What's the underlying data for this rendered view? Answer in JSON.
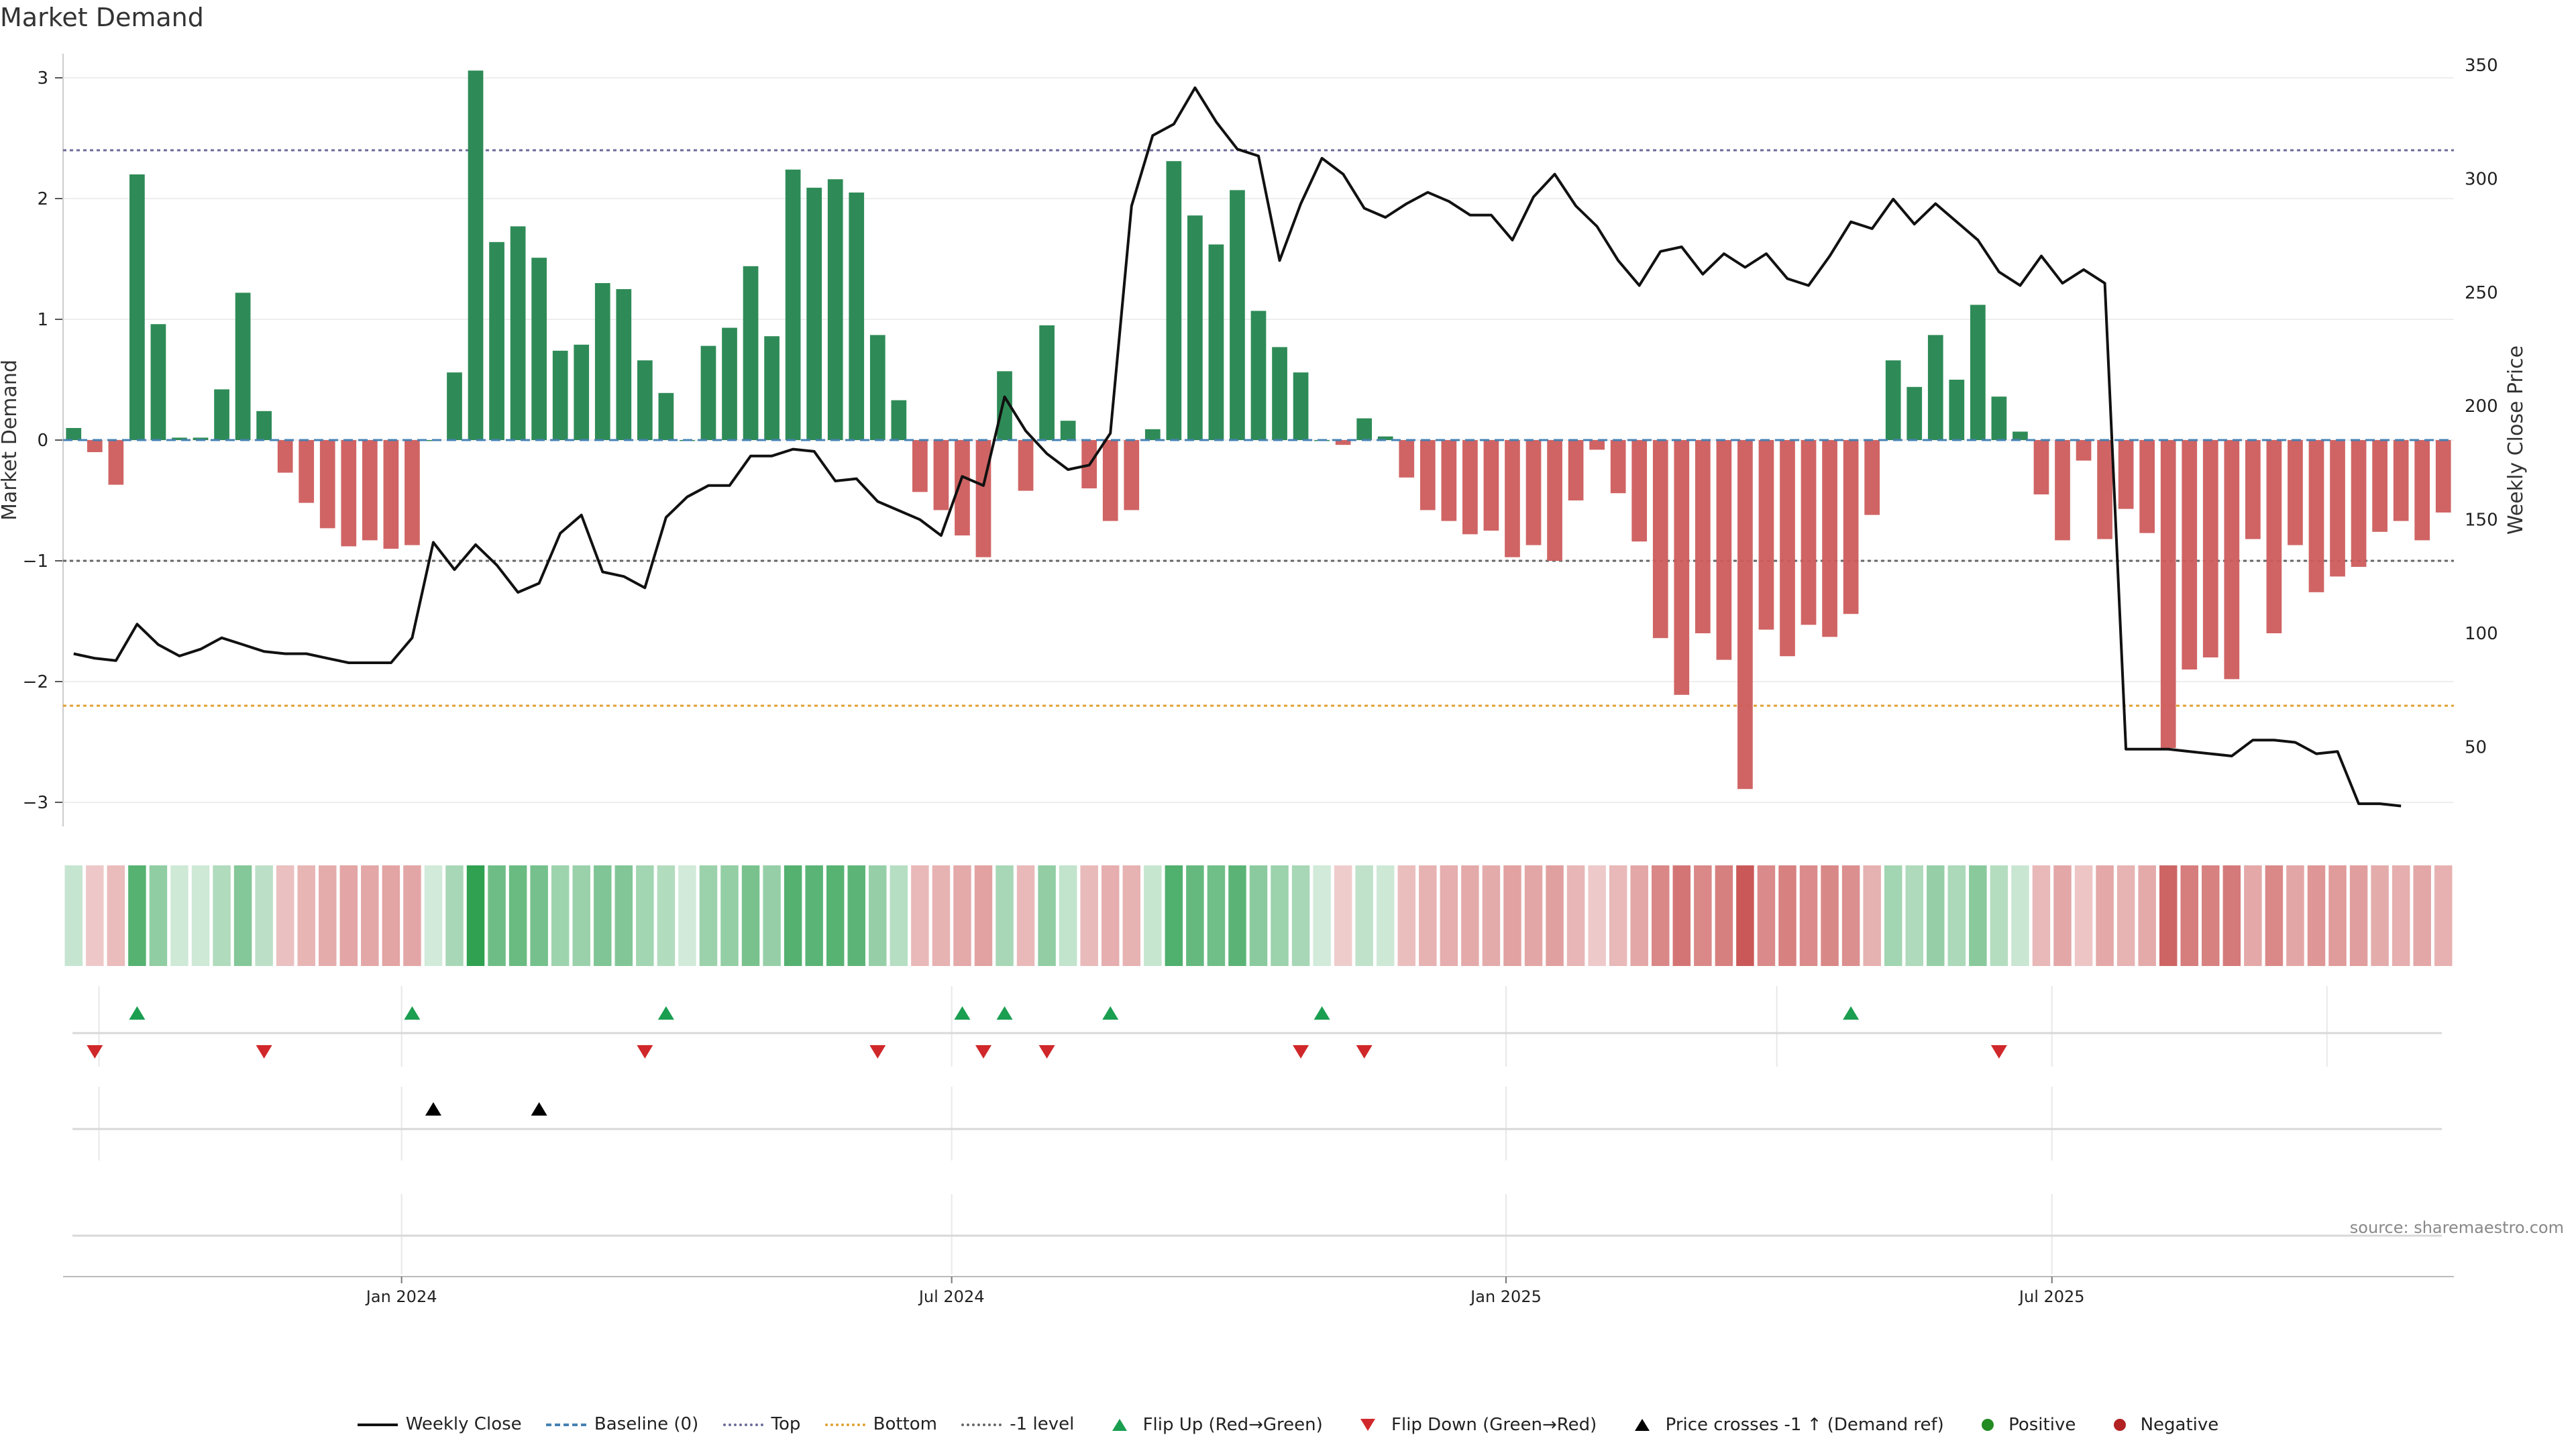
{
  "chart_data": {
    "type": "bar",
    "title": "Market Demand",
    "ylabel_left": "Market Demand",
    "ylabel_right": "Weekly Close Price",
    "ylim_left": [
      -3.2,
      3.2
    ],
    "ylim_right": [
      15,
      355
    ],
    "yticks_left": [
      -3,
      -2,
      -1,
      0,
      1,
      2,
      3
    ],
    "ytick_labels_left": [
      "−3",
      "−2",
      "−1",
      "0",
      "1",
      "2",
      "3"
    ],
    "yticks_right": [
      50,
      100,
      150,
      200,
      250,
      300,
      350
    ],
    "reference_lines": {
      "top": 2.4,
      "bottom": -2.2,
      "minus_one": -1.0
    },
    "x_ticks": [
      {
        "label": "Jan 2024",
        "index": 15.5
      },
      {
        "label": "Jul 2024",
        "index": 41.5
      },
      {
        "label": "Jan 2025",
        "index": 67.7
      },
      {
        "label": "Jul 2025",
        "index": 93.5
      }
    ],
    "demand": [
      0.1,
      -0.1,
      -0.37,
      2.2,
      0.96,
      0.02,
      0.02,
      0.42,
      1.22,
      0.24,
      -0.27,
      -0.52,
      -0.73,
      -0.88,
      -0.83,
      -0.9,
      -0.87,
      0,
      0.56,
      3.06,
      1.64,
      1.77,
      1.51,
      0.74,
      0.79,
      1.3,
      1.25,
      0.66,
      0.39,
      0,
      0.78,
      0.93,
      1.44,
      0.86,
      2.24,
      2.09,
      2.16,
      2.05,
      0.87,
      0.33,
      -0.43,
      -0.58,
      -0.79,
      -0.97,
      0.57,
      -0.42,
      0.95,
      0.16,
      -0.4,
      -0.67,
      -0.58,
      0.09,
      2.31,
      1.86,
      1.62,
      2.07,
      1.07,
      0.77,
      0.56,
      0.0,
      -0.04,
      0.18,
      0.03,
      -0.31,
      -0.58,
      -0.67,
      -0.78,
      -0.75,
      -0.97,
      -0.87,
      -1.0,
      -0.5,
      -0.08,
      -0.44,
      -0.84,
      -1.64,
      -2.11,
      -1.6,
      -1.82,
      -2.89,
      -1.57,
      -1.79,
      -1.53,
      -1.63,
      -1.44,
      -0.62,
      0.66,
      0.44,
      0.87,
      0.5,
      1.12,
      0.36,
      0.07,
      -0.45,
      -0.83,
      -0.17,
      -0.82,
      -0.57,
      -0.77,
      -2.55,
      -1.9,
      -1.8,
      -1.98,
      -0.82,
      -1.6,
      -0.87,
      -1.26,
      -1.13,
      -1.05,
      -0.76,
      -0.67,
      -0.83,
      -0.6
    ],
    "price": [
      91,
      89,
      88,
      104,
      95,
      90,
      93,
      98,
      95,
      92,
      91,
      91,
      89,
      87,
      87,
      87,
      98,
      140,
      128,
      139,
      130,
      118,
      122,
      144,
      152,
      127,
      125,
      120,
      151,
      160,
      165,
      165,
      178,
      178,
      181,
      180,
      167,
      168,
      158,
      154,
      150,
      143,
      169,
      165,
      204,
      189,
      179,
      172,
      174,
      188,
      288,
      319,
      324,
      340,
      325,
      313,
      310,
      264,
      289,
      309,
      302,
      287,
      283,
      289,
      294,
      290,
      284,
      284,
      273,
      292,
      302,
      288,
      279,
      264,
      253,
      268,
      270,
      258,
      267,
      261,
      267,
      256,
      253,
      266,
      281,
      278,
      291,
      280,
      289,
      281,
      273,
      259,
      253,
      266,
      254,
      260,
      254,
      49,
      49,
      49,
      48,
      47,
      46,
      53,
      53,
      52,
      47,
      48,
      25,
      25,
      24
    ],
    "flip_up": [
      3,
      16,
      28,
      42,
      44,
      49,
      59,
      84
    ],
    "flip_down": [
      1,
      9,
      27,
      38,
      43,
      46,
      58,
      61,
      91
    ],
    "price_cross": [
      17,
      22
    ],
    "legend": [
      "Weekly Close",
      "Baseline (0)",
      "Top",
      "Bottom",
      "-1 level",
      "Flip Up (Red→Green)",
      "Flip Down (Green→Red)",
      "Price crosses -1 ↑ (Demand ref)",
      "Positive",
      "Negative"
    ]
  },
  "source_text": "source: sharemaestro.com",
  "colors": {
    "positive": "#2e8b57",
    "negative": "#cd5c5c",
    "price": "#111111",
    "baseline": "#4682b4",
    "top": "#6a6a9a",
    "bottom": "#e0a030",
    "minus_one": "#666666",
    "flip_up": "#1a9e50",
    "flip_down": "#d0282a",
    "cross": "#000000",
    "legend_positive": "#228b22",
    "legend_negative": "#b22222"
  }
}
